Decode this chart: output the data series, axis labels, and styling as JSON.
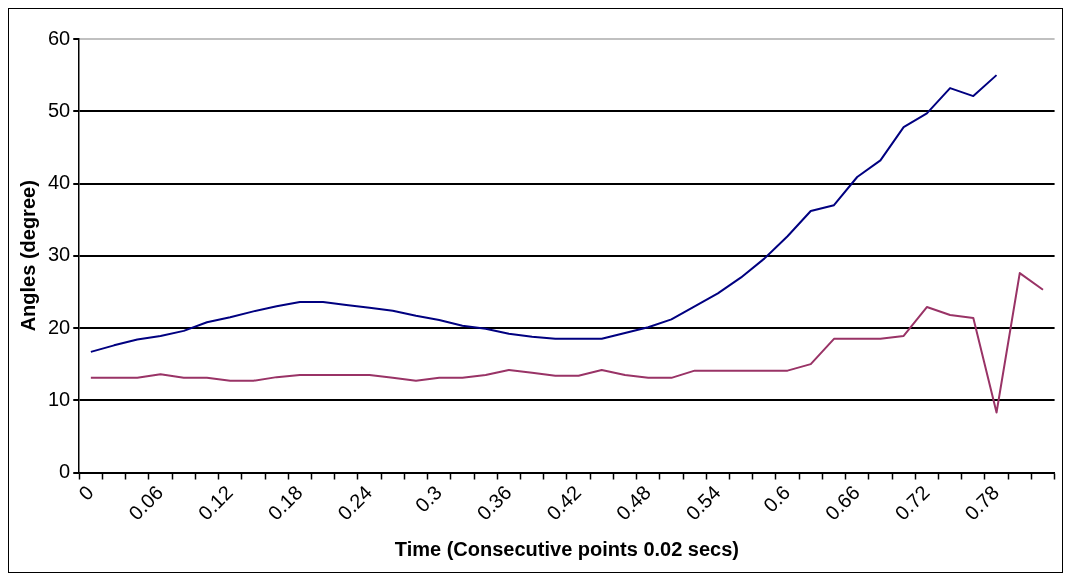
{
  "chart_data": {
    "type": "line",
    "xlabel": "Time (Consecutive points 0.02 secs)",
    "ylabel": "Angles (degree)",
    "categories": [
      "0",
      null,
      null,
      "0.06",
      null,
      null,
      "0.12",
      null,
      null,
      "0.18",
      null,
      null,
      "0.24",
      null,
      null,
      "0.3",
      null,
      null,
      "0.36",
      null,
      null,
      "0.42",
      null,
      null,
      "0.48",
      null,
      null,
      "0.54",
      null,
      null,
      "0.6",
      null,
      null,
      "0.66",
      null,
      null,
      "0.72",
      null,
      null,
      "0.78",
      null,
      null
    ],
    "series": [
      {
        "color": "#000080",
        "values": [
          16.7,
          17.6,
          18.4,
          18.9,
          19.6,
          20.8,
          21.5,
          22.3,
          23,
          23.6,
          23.6,
          23.2,
          22.8,
          22.4,
          21.7,
          21.1,
          20.3,
          19.9,
          19.2,
          18.8,
          18.5,
          18.5,
          18.5,
          19.3,
          20.1,
          21.2,
          23,
          24.8,
          27,
          29.6,
          32.7,
          36.2,
          37,
          40.9,
          43.2,
          47.8,
          49.7,
          53.2,
          52.1,
          55,
          null,
          null
        ]
      },
      {
        "color": "#993366",
        "values": [
          13.1,
          13.1,
          13.1,
          13.6,
          13.1,
          13.1,
          12.7,
          12.7,
          13.2,
          13.5,
          13.5,
          13.5,
          13.5,
          13.1,
          12.7,
          13.1,
          13.1,
          13.5,
          14.2,
          13.8,
          13.4,
          13.4,
          14.2,
          13.5,
          13.1,
          13.1,
          14.1,
          14.1,
          14.1,
          14.1,
          14.1,
          15,
          18.5,
          18.5,
          18.5,
          18.9,
          22.9,
          21.8,
          21.4,
          8.3,
          27.6,
          25.3
        ]
      }
    ],
    "ylim": [
      0,
      60
    ],
    "yticks": [
      0,
      10,
      20,
      30,
      40,
      50,
      60
    ],
    "grid": "y",
    "legend": false,
    "marker": "none",
    "line_style": "solid"
  }
}
